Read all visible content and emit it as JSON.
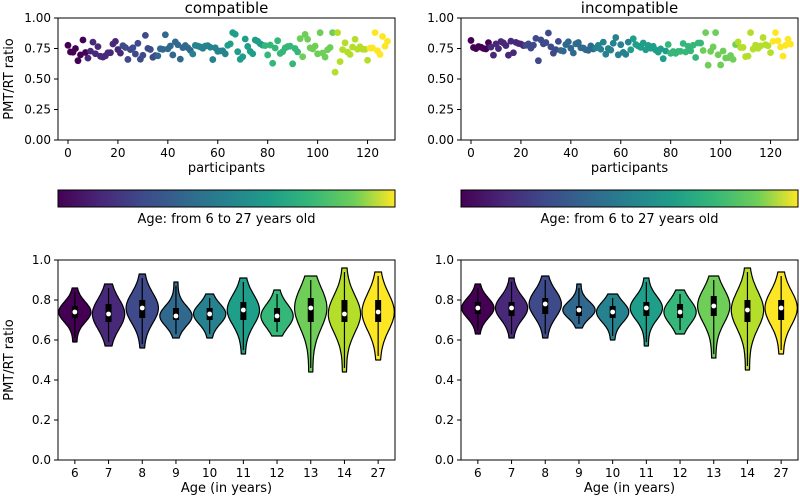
{
  "chart_data": [
    {
      "type": "scatter",
      "title": "compatible",
      "xlabel": "participants",
      "ylabel": "PMT/RT ratio",
      "xlim": [
        -4,
        131
      ],
      "ylim": [
        0.0,
        1.0
      ],
      "xticks": [
        0,
        20,
        40,
        60,
        80,
        100,
        120
      ],
      "yticks": [
        0.0,
        0.25,
        0.5,
        0.75,
        1.0
      ],
      "colorbar_label": "Age: from 6 to 27 years old",
      "seed": 17,
      "segments": [
        {
          "age": 6,
          "n": 15,
          "mean": 0.74,
          "spread": 0.05
        },
        {
          "age": 7,
          "n": 11,
          "mean": 0.73,
          "spread": 0.05
        },
        {
          "age": 8,
          "n": 12,
          "mean": 0.76,
          "spread": 0.06
        },
        {
          "age": 9,
          "n": 14,
          "mean": 0.73,
          "spread": 0.05
        },
        {
          "age": 10,
          "n": 12,
          "mean": 0.73,
          "spread": 0.04
        },
        {
          "age": 11,
          "n": 13,
          "mean": 0.74,
          "spread": 0.06
        },
        {
          "age": 12,
          "n": 11,
          "mean": 0.72,
          "spread": 0.04
        },
        {
          "age": 13,
          "n": 11,
          "mean": 0.75,
          "spread": 0.06
        },
        {
          "age": 14,
          "n": 16,
          "mean": 0.72,
          "spread": 0.08
        },
        {
          "age": 27,
          "n": 14,
          "mean": 0.74,
          "spread": 0.07
        }
      ]
    },
    {
      "type": "scatter",
      "title": "incompatible",
      "xlabel": "participants",
      "ylabel": "",
      "xlim": [
        -4,
        131
      ],
      "ylim": [
        0.0,
        1.0
      ],
      "xticks": [
        0,
        20,
        40,
        60,
        80,
        100,
        120
      ],
      "yticks": [
        0.0,
        0.25,
        0.5,
        0.75,
        1.0
      ],
      "colorbar_label": "Age: from 6 to 27 years old",
      "seed": 29,
      "segments": [
        {
          "age": 6,
          "n": 15,
          "mean": 0.76,
          "spread": 0.04
        },
        {
          "age": 7,
          "n": 11,
          "mean": 0.75,
          "spread": 0.04
        },
        {
          "age": 8,
          "n": 12,
          "mean": 0.78,
          "spread": 0.05
        },
        {
          "age": 9,
          "n": 14,
          "mean": 0.75,
          "spread": 0.03
        },
        {
          "age": 10,
          "n": 12,
          "mean": 0.75,
          "spread": 0.04
        },
        {
          "age": 11,
          "n": 13,
          "mean": 0.76,
          "spread": 0.05
        },
        {
          "age": 12,
          "n": 11,
          "mean": 0.75,
          "spread": 0.04
        },
        {
          "age": 13,
          "n": 11,
          "mean": 0.77,
          "spread": 0.06
        },
        {
          "age": 14,
          "n": 16,
          "mean": 0.74,
          "spread": 0.07
        },
        {
          "age": 27,
          "n": 14,
          "mean": 0.76,
          "spread": 0.06
        }
      ]
    },
    {
      "type": "violin",
      "title": "",
      "xlabel": "Age (in years)",
      "ylabel": "PMT/RT ratio",
      "ylim": [
        0.0,
        1.0
      ],
      "yticks": [
        0.0,
        0.2,
        0.4,
        0.6,
        0.8,
        1.0
      ],
      "categories": [
        "6",
        "7",
        "8",
        "9",
        "10",
        "11",
        "12",
        "13",
        "14",
        "27"
      ],
      "colors": [
        "#440154",
        "#482878",
        "#3e4a89",
        "#31688e",
        "#26828e",
        "#1f9e89",
        "#35b779",
        "#6ece58",
        "#b5de2b",
        "#fde725"
      ],
      "series": [
        {
          "min": 0.59,
          "q1": 0.71,
          "median": 0.74,
          "q3": 0.77,
          "max": 0.86
        },
        {
          "min": 0.57,
          "q1": 0.69,
          "median": 0.73,
          "q3": 0.78,
          "max": 0.88
        },
        {
          "min": 0.56,
          "q1": 0.71,
          "median": 0.76,
          "q3": 0.8,
          "max": 0.93
        },
        {
          "min": 0.61,
          "q1": 0.7,
          "median": 0.72,
          "q3": 0.76,
          "max": 0.89
        },
        {
          "min": 0.61,
          "q1": 0.7,
          "median": 0.73,
          "q3": 0.76,
          "max": 0.83
        },
        {
          "min": 0.53,
          "q1": 0.7,
          "median": 0.75,
          "q3": 0.79,
          "max": 0.91
        },
        {
          "min": 0.62,
          "q1": 0.69,
          "median": 0.72,
          "q3": 0.76,
          "max": 0.85
        },
        {
          "min": 0.44,
          "q1": 0.69,
          "median": 0.76,
          "q3": 0.81,
          "max": 0.92
        },
        {
          "min": 0.44,
          "q1": 0.69,
          "median": 0.73,
          "q3": 0.8,
          "max": 0.96
        },
        {
          "min": 0.5,
          "q1": 0.69,
          "median": 0.74,
          "q3": 0.8,
          "max": 0.94
        }
      ]
    },
    {
      "type": "violin",
      "title": "",
      "xlabel": "Age (in years)",
      "ylabel": "",
      "ylim": [
        0.0,
        1.0
      ],
      "yticks": [
        0.0,
        0.2,
        0.4,
        0.6,
        0.8,
        1.0
      ],
      "categories": [
        "6",
        "7",
        "8",
        "9",
        "10",
        "11",
        "12",
        "13",
        "14",
        "27"
      ],
      "colors": [
        "#440154",
        "#482878",
        "#3e4a89",
        "#31688e",
        "#26828e",
        "#1f9e89",
        "#35b779",
        "#6ece58",
        "#b5de2b",
        "#fde725"
      ],
      "series": [
        {
          "min": 0.63,
          "q1": 0.73,
          "median": 0.76,
          "q3": 0.79,
          "max": 0.88
        },
        {
          "min": 0.61,
          "q1": 0.72,
          "median": 0.76,
          "q3": 0.79,
          "max": 0.91
        },
        {
          "min": 0.61,
          "q1": 0.73,
          "median": 0.78,
          "q3": 0.81,
          "max": 0.92
        },
        {
          "min": 0.66,
          "q1": 0.72,
          "median": 0.75,
          "q3": 0.77,
          "max": 0.88
        },
        {
          "min": 0.6,
          "q1": 0.71,
          "median": 0.74,
          "q3": 0.77,
          "max": 0.83
        },
        {
          "min": 0.57,
          "q1": 0.72,
          "median": 0.76,
          "q3": 0.79,
          "max": 0.91
        },
        {
          "min": 0.63,
          "q1": 0.71,
          "median": 0.74,
          "q3": 0.78,
          "max": 0.85
        },
        {
          "min": 0.51,
          "q1": 0.72,
          "median": 0.77,
          "q3": 0.82,
          "max": 0.92
        },
        {
          "min": 0.45,
          "q1": 0.69,
          "median": 0.75,
          "q3": 0.8,
          "max": 0.96
        },
        {
          "min": 0.53,
          "q1": 0.7,
          "median": 0.76,
          "q3": 0.8,
          "max": 0.94
        }
      ]
    }
  ]
}
